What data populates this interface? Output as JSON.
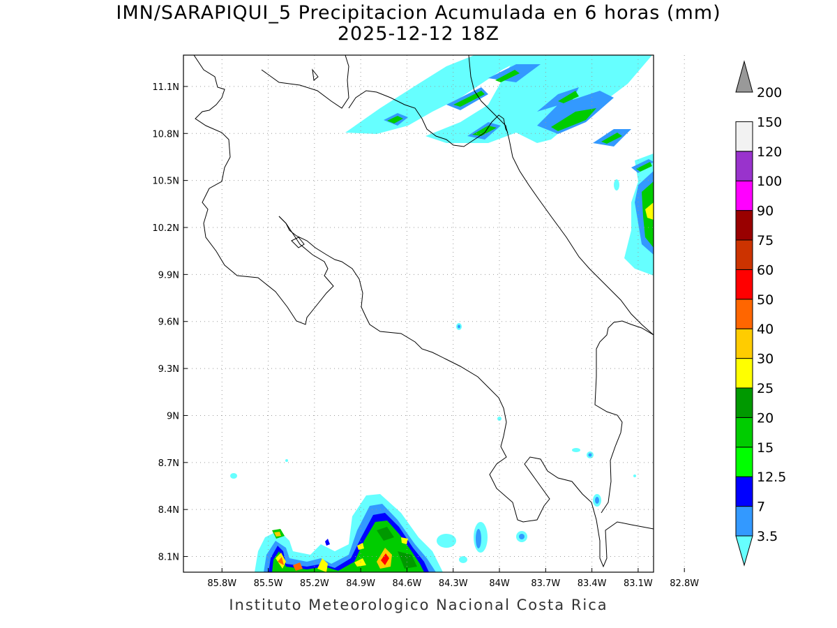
{
  "title": {
    "line1": "IMN/SARAPIQUI_5 Precipitacion Acumulada en 6 horas (mm)",
    "line2": "2025-12-12 18Z"
  },
  "footer": "Instituto Meteorologico Nacional Costa Rica",
  "map": {
    "lat_ticks": [
      {
        "label": "11.1N",
        "value": 11.1
      },
      {
        "label": "10.8N",
        "value": 10.8
      },
      {
        "label": "10.5N",
        "value": 10.5
      },
      {
        "label": "10.2N",
        "value": 10.2
      },
      {
        "label": "9.9N",
        "value": 9.9
      },
      {
        "label": "9.6N",
        "value": 9.6
      },
      {
        "label": "9.3N",
        "value": 9.3
      },
      {
        "label": "9N",
        "value": 9.0
      },
      {
        "label": "8.7N",
        "value": 8.7
      },
      {
        "label": "8.4N",
        "value": 8.4
      },
      {
        "label": "8.1N",
        "value": 8.1
      }
    ],
    "lon_ticks": [
      {
        "label": "85.8W",
        "value": -85.8
      },
      {
        "label": "85.5W",
        "value": -85.5
      },
      {
        "label": "85.2W",
        "value": -85.2
      },
      {
        "label": "84.9W",
        "value": -84.9
      },
      {
        "label": "84.6W",
        "value": -84.6
      },
      {
        "label": "84.3W",
        "value": -84.3
      },
      {
        "label": "84W",
        "value": -84.0
      },
      {
        "label": "83.7W",
        "value": -83.7
      },
      {
        "label": "83.4W",
        "value": -83.4
      },
      {
        "label": "83.1W",
        "value": -83.1
      },
      {
        "label": "82.8W",
        "value": -82.8
      }
    ],
    "lon_range": [
      -86.05,
      -83.0
    ],
    "lat_range": [
      8.0,
      11.3
    ],
    "grid": true
  },
  "colorbar": {
    "bins": [
      {
        "label": "3.5",
        "color": "#66ffff"
      },
      {
        "label": "7",
        "color": "#3399ff"
      },
      {
        "label": "12.5",
        "color": "#0000ff"
      },
      {
        "label": "15",
        "color": "#00ff00"
      },
      {
        "label": "20",
        "color": "#00cc00"
      },
      {
        "label": "25",
        "color": "#009900"
      },
      {
        "label": "30",
        "color": "#ffff00"
      },
      {
        "label": "40",
        "color": "#ffcc00"
      },
      {
        "label": "50",
        "color": "#ff6600"
      },
      {
        "label": "60",
        "color": "#ff0000"
      },
      {
        "label": "75",
        "color": "#cc3300"
      },
      {
        "label": "90",
        "color": "#990000"
      },
      {
        "label": "100",
        "color": "#ff00ff"
      },
      {
        "label": "120",
        "color": "#9933cc"
      },
      {
        "label": "150",
        "color": "#f2f2f2"
      },
      {
        "label": "200",
        "color": "#999999"
      }
    ]
  }
}
